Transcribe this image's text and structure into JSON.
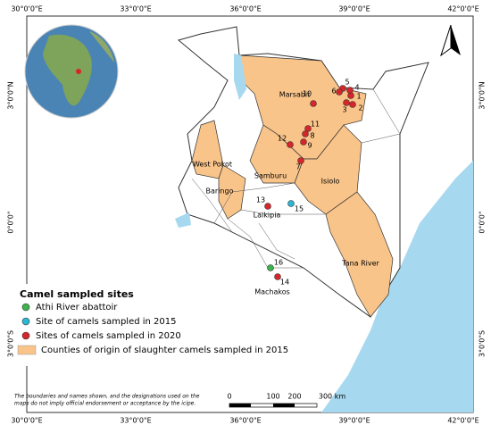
{
  "map": {
    "graticule": {
      "longitudes": [
        "30°0'0\"E",
        "33°0'0\"E",
        "36°0'0\"E",
        "39°0'0\"E",
        "42°0'0\"E"
      ],
      "latitudes": [
        "3°0'0\"N",
        "0°0'0\"",
        "3°0'0\"S"
      ]
    },
    "counties": [
      "Marsabit",
      "West Pokot",
      "Samburu",
      "Isiolo",
      "Baringo",
      "Laikipia",
      "Machakos",
      "Tana River"
    ],
    "sites": [
      {
        "label": "1",
        "group": "2020"
      },
      {
        "label": "2",
        "group": "2020"
      },
      {
        "label": "3",
        "group": "2020"
      },
      {
        "label": "4",
        "group": "2020"
      },
      {
        "label": "5",
        "group": "2020"
      },
      {
        "label": "6",
        "group": "2020"
      },
      {
        "label": "7",
        "group": "2020"
      },
      {
        "label": "8",
        "group": "2020"
      },
      {
        "label": "9",
        "group": "2020"
      },
      {
        "label": "10",
        "group": "2020"
      },
      {
        "label": "11",
        "group": "2020"
      },
      {
        "label": "12",
        "group": "2020"
      },
      {
        "label": "13",
        "group": "2020"
      },
      {
        "label": "14",
        "group": "2020"
      },
      {
        "label": "15",
        "group": "2015"
      },
      {
        "label": "16",
        "group": "abattoir"
      }
    ],
    "legend": {
      "title": "Camel sampled sites",
      "items": [
        {
          "label": "Athi River abattoir",
          "color": "#3cb44b"
        },
        {
          "label": "Site of camels sampled in 2015",
          "color": "#2ab7d4"
        },
        {
          "label": "Sites of camels sampled in 2020",
          "color": "#d6262b"
        },
        {
          "label": "Counties of origin of slaughter camels sampled in 2015",
          "color": "#f9c48a"
        }
      ]
    },
    "disclaimer": [
      "The boundaries and names shown, and the designations used on the",
      "maps do not imply official endorsement or acceptance by the icipe."
    ],
    "scale_bar": [
      "0",
      "100",
      "200",
      "300 km"
    ]
  }
}
